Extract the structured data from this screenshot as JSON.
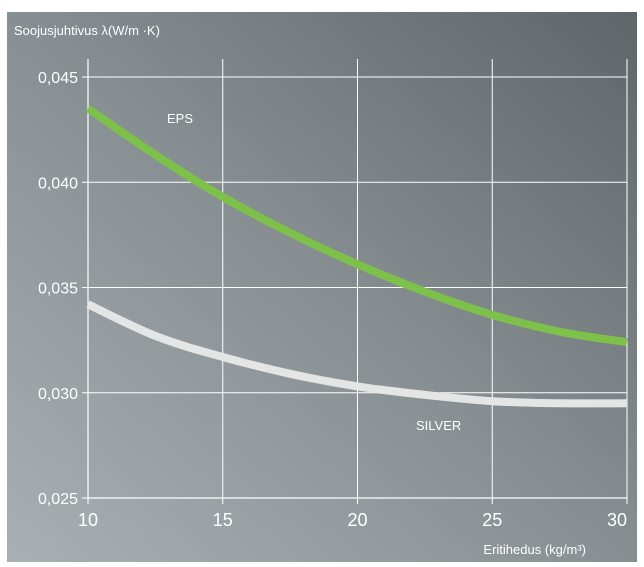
{
  "chart_data": {
    "type": "line",
    "ylabel": "Soojusjuhtivus  λ(W/m ·K)",
    "xlabel": "Eritihedus (kg/m³)",
    "xlim": [
      10,
      30
    ],
    "ylim": [
      0.025,
      0.045
    ],
    "x_ticks": [
      10,
      15,
      20,
      25,
      30
    ],
    "x_tick_labels": [
      "10",
      "15",
      "20",
      "25",
      "30"
    ],
    "y_ticks": [
      0.025,
      0.03,
      0.035,
      0.04,
      0.045
    ],
    "y_tick_labels": [
      "0,025",
      "0,030",
      "0,035",
      "0,040",
      "0,045"
    ],
    "grid": true,
    "series": [
      {
        "name": "EPS",
        "color": "#7dc14b",
        "x": [
          10,
          12.5,
          15,
          17.5,
          20,
          22.5,
          25,
          27.5,
          30
        ],
        "values": [
          0.0435,
          0.0413,
          0.0393,
          0.0376,
          0.0361,
          0.0348,
          0.0337,
          0.0329,
          0.0324
        ]
      },
      {
        "name": "SILVER",
        "color": "#e4e6e6",
        "x": [
          10,
          12.5,
          15,
          17.5,
          20,
          22.5,
          25,
          27.5,
          30
        ],
        "values": [
          0.0342,
          0.0327,
          0.0317,
          0.0309,
          0.0303,
          0.0299,
          0.0296,
          0.0295,
          0.0295
        ]
      }
    ]
  }
}
